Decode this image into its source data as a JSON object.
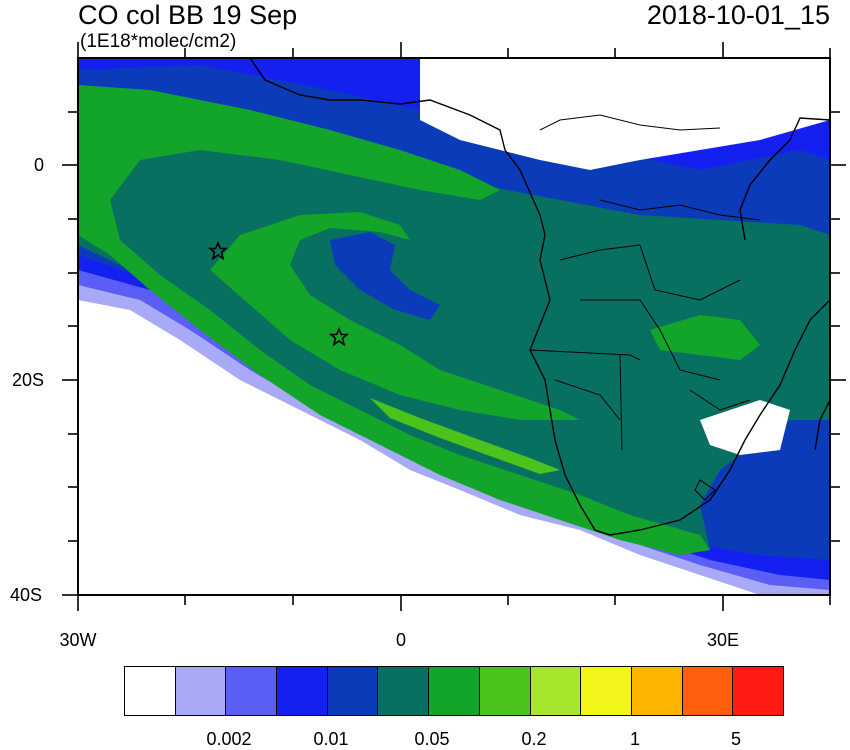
{
  "header": {
    "title": "CO col BB 19 Sep",
    "subtitle": "(1E18*molec/cm2)",
    "datetime": "2018-10-01_15"
  },
  "axes": {
    "y_ticks": [
      "0",
      "20S",
      "40S"
    ],
    "x_ticks": [
      "30W",
      "0",
      "30E"
    ]
  },
  "colorbar": {
    "colors": [
      "#ffffff",
      "#a9aaf7",
      "#5a5ef5",
      "#1420f0",
      "#0b3bb8",
      "#087060",
      "#12a52a",
      "#4cc21c",
      "#a8e62e",
      "#f2f51a",
      "#ffb400",
      "#ff5f0a",
      "#ff1a12"
    ],
    "tick_labels": [
      "0.002",
      "0.01",
      "0.05",
      "0.2",
      "1",
      "5"
    ]
  },
  "markers": [
    {
      "name": "star-marker",
      "lon": -17,
      "lat": -8
    },
    {
      "name": "star-marker",
      "lon": -6.5,
      "lat": -16
    }
  ],
  "map": {
    "lon_range": [
      -30,
      40
    ],
    "lat_range": [
      -40,
      10
    ]
  }
}
